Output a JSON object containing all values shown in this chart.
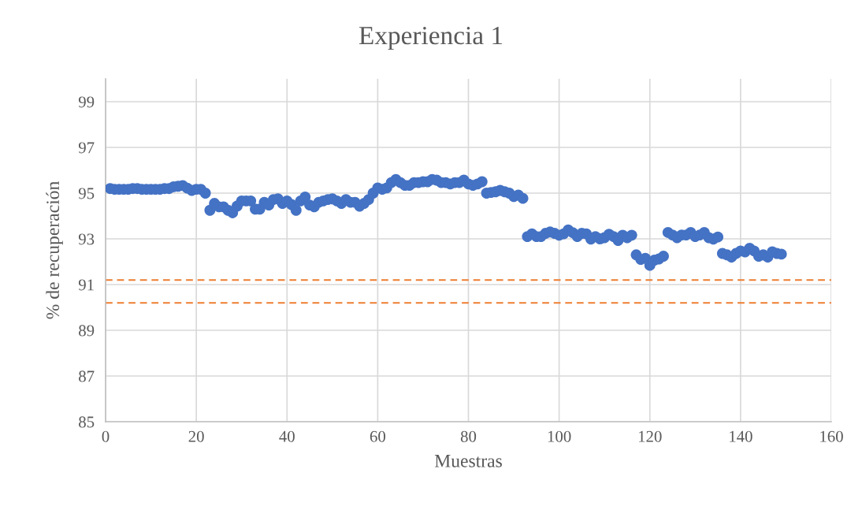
{
  "chart_data": {
    "type": "scatter",
    "title": "Experiencia 1",
    "xlabel": "Muestras",
    "ylabel": "% de recuperación",
    "x": [
      1,
      2,
      3,
      4,
      5,
      6,
      7,
      8,
      9,
      10,
      11,
      12,
      13,
      14,
      15,
      16,
      17,
      18,
      19,
      20,
      21,
      22,
      23,
      24,
      25,
      26,
      27,
      28,
      29,
      30,
      31,
      32,
      33,
      34,
      35,
      36,
      37,
      38,
      39,
      40,
      41,
      42,
      43,
      44,
      45,
      46,
      47,
      48,
      49,
      50,
      51,
      52,
      53,
      54,
      55,
      56,
      57,
      58,
      59,
      60,
      61,
      62,
      63,
      64,
      65,
      66,
      67,
      68,
      69,
      70,
      71,
      72,
      73,
      74,
      75,
      76,
      77,
      78,
      79,
      80,
      81,
      82,
      83,
      84,
      85,
      86,
      87,
      88,
      89,
      90,
      91,
      92,
      93,
      94,
      95,
      96,
      97,
      98,
      99,
      100,
      101,
      102,
      103,
      104,
      105,
      106,
      107,
      108,
      109,
      110,
      111,
      112,
      113,
      114,
      115,
      116,
      117,
      118,
      119,
      120,
      121,
      122,
      123,
      124,
      125,
      126,
      127,
      128,
      129,
      130,
      131,
      132,
      133,
      134,
      135,
      136,
      137,
      138,
      139,
      140,
      141,
      142,
      143,
      144,
      145,
      146,
      147,
      148,
      149
    ],
    "series": [
      {
        "color": "#4472c4",
        "values": [
          95.2,
          95.17,
          95.17,
          95.17,
          95.17,
          95.2,
          95.2,
          95.17,
          95.17,
          95.17,
          95.17,
          95.17,
          95.2,
          95.2,
          95.28,
          95.3,
          95.33,
          95.22,
          95.12,
          95.17,
          95.17,
          95.0,
          94.25,
          94.55,
          94.4,
          94.4,
          94.25,
          94.14,
          94.43,
          94.66,
          94.66,
          94.66,
          94.3,
          94.3,
          94.6,
          94.48,
          94.72,
          94.75,
          94.55,
          94.66,
          94.5,
          94.25,
          94.66,
          94.83,
          94.48,
          94.4,
          94.6,
          94.66,
          94.72,
          94.75,
          94.66,
          94.55,
          94.72,
          94.6,
          94.6,
          94.43,
          94.55,
          94.72,
          95.0,
          95.23,
          95.17,
          95.23,
          95.46,
          95.6,
          95.46,
          95.34,
          95.34,
          95.46,
          95.46,
          95.5,
          95.5,
          95.6,
          95.57,
          95.46,
          95.46,
          95.4,
          95.46,
          95.46,
          95.57,
          95.4,
          95.34,
          95.4,
          95.5,
          95.0,
          95.03,
          95.06,
          95.12,
          95.06,
          95.0,
          94.85,
          94.92,
          94.77,
          93.1,
          93.22,
          93.1,
          93.1,
          93.24,
          93.3,
          93.24,
          93.16,
          93.22,
          93.39,
          93.27,
          93.1,
          93.24,
          93.22,
          92.99,
          93.1,
          93.0,
          93.05,
          93.2,
          93.1,
          92.93,
          93.16,
          93.05,
          93.16,
          92.3,
          92.1,
          92.15,
          91.84,
          92.07,
          92.12,
          92.24,
          93.28,
          93.17,
          93.05,
          93.17,
          93.17,
          93.28,
          93.1,
          93.17,
          93.28,
          93.05,
          92.99,
          93.08,
          92.36,
          92.3,
          92.2,
          92.36,
          92.47,
          92.43,
          92.59,
          92.47,
          92.24,
          92.3,
          92.2,
          92.43,
          92.36,
          92.33
        ]
      }
    ],
    "marker": "circle",
    "ref_lines": [
      {
        "axis": "y",
        "value": 91.2,
        "color": "#ed7d31",
        "line_style": "dashed"
      },
      {
        "axis": "y",
        "value": 90.2,
        "color": "#ed7d31",
        "line_style": "dashed"
      }
    ],
    "xlim": [
      0,
      160
    ],
    "xticks": [
      0,
      20,
      40,
      60,
      80,
      100,
      120,
      140,
      160
    ],
    "ylim": [
      85,
      100
    ],
    "yticks": [
      85,
      87,
      89,
      91,
      93,
      95,
      97,
      99
    ],
    "grid": true
  }
}
